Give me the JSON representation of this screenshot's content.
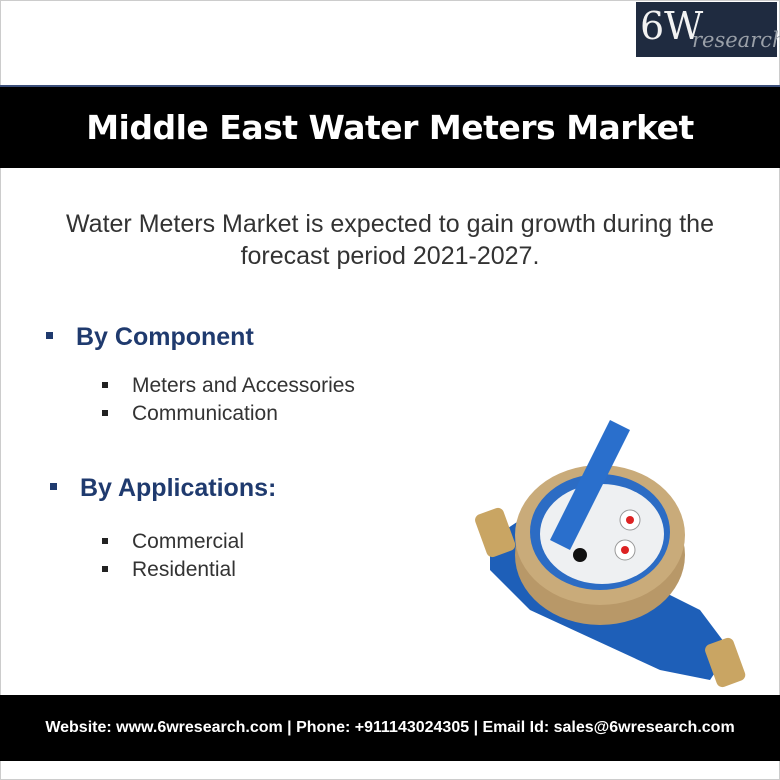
{
  "logo": {
    "main": "6W",
    "sub": "research"
  },
  "title": "Middle East Water Meters Market",
  "intro": "Water Meters Market is expected to gain growth during the forecast period 2021-2027.",
  "sections": [
    {
      "heading": "By Component",
      "items": [
        "Meters and Accessories",
        "Communication"
      ]
    },
    {
      "heading": "By Applications:",
      "items": [
        "Commercial",
        "Residential"
      ]
    }
  ],
  "footer": "Website: www.6wresearch.com | Phone: +911143024305 | Email Id: sales@6wresearch.com",
  "colors": {
    "banner": "#000000",
    "heading": "#1f3a6e",
    "logo_bg": "#1f2b40",
    "meter_body": "#1e5fb8"
  }
}
